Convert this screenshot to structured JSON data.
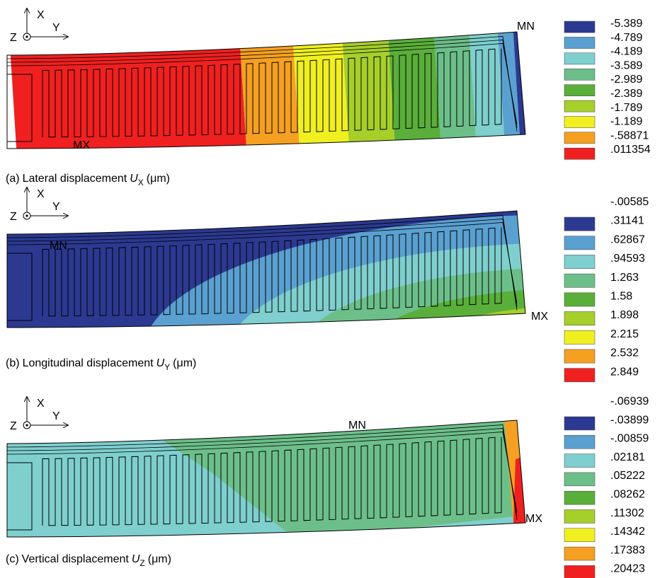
{
  "axes_labels": {
    "x": "X",
    "y": "Y",
    "z": "Z"
  },
  "legend_colors": [
    "#2b3990",
    "#5aa0d0",
    "#7fcfcf",
    "#6dbf8a",
    "#5aaf3a",
    "#a6cf2a",
    "#f0f020",
    "#f5a020",
    "#f02020"
  ],
  "panels": [
    {
      "label": "(a)",
      "text": "Lateral displacement",
      "symbol": "U",
      "subscript": "X",
      "unit": "(μm)",
      "min_marker": "MN",
      "max_marker": "MX",
      "legend": [
        "-5.389",
        "-4.789",
        "-4.189",
        "-3.589",
        "-2.989",
        "-2.389",
        "-1.789",
        "-1.189",
        "-.58871",
        ".011354"
      ]
    },
    {
      "label": "(b)",
      "text": "Longitudinal displacement",
      "symbol": "U",
      "subscript": "Y",
      "unit": "(μm)",
      "min_marker": "MN",
      "max_marker": "MX",
      "legend": [
        "-.00585",
        ".31141",
        ".62867",
        ".94593",
        "1.263",
        "1.58",
        "1.898",
        "2.215",
        "2.532",
        "2.849"
      ]
    },
    {
      "label": "(c)",
      "text": "Vertical displacement",
      "symbol": "U",
      "subscript": "Z",
      "unit": "(μm)",
      "min_marker": "MN",
      "max_marker": "MX",
      "legend": [
        "-.06939",
        "-.03899",
        "-.00859",
        ".02181",
        ".05222",
        ".08262",
        ".11302",
        ".14342",
        ".17383",
        ".20423"
      ]
    }
  ]
}
